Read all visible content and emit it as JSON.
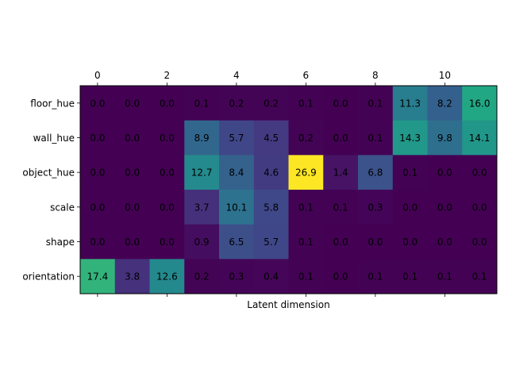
{
  "chart_data": {
    "type": "heatmap",
    "title": "",
    "xlabel": "Latent dimension",
    "ylabel": "",
    "x_ticks_top": [
      0,
      2,
      4,
      6,
      8,
      10
    ],
    "x_ticks_bottom_labels": false,
    "x_columns": [
      0,
      1,
      2,
      3,
      4,
      5,
      6,
      7,
      8,
      9,
      10,
      11
    ],
    "y_labels": [
      "floor_hue",
      "wall_hue",
      "object_hue",
      "scale",
      "shape",
      "orientation"
    ],
    "values": [
      [
        0.0,
        0.0,
        0.0,
        0.1,
        0.2,
        0.2,
        0.1,
        0.0,
        0.1,
        11.3,
        8.2,
        16.0
      ],
      [
        0.0,
        0.0,
        0.0,
        8.9,
        5.7,
        4.5,
        0.2,
        0.0,
        0.1,
        14.3,
        9.8,
        14.1
      ],
      [
        0.0,
        0.0,
        0.0,
        12.7,
        8.4,
        4.6,
        26.9,
        1.4,
        6.8,
        0.1,
        0.0,
        0.0
      ],
      [
        0.0,
        0.0,
        0.0,
        3.7,
        10.1,
        5.8,
        0.1,
        0.1,
        0.3,
        0.0,
        0.0,
        0.0
      ],
      [
        0.0,
        0.0,
        0.0,
        0.9,
        6.5,
        5.7,
        0.1,
        0.0,
        0.0,
        0.0,
        0.0,
        0.0
      ],
      [
        17.4,
        3.8,
        12.6,
        0.2,
        0.3,
        0.4,
        0.1,
        0.0,
        0.1,
        0.1,
        0.1,
        0.1
      ]
    ],
    "colormap": "viridis",
    "vmin": 0.0,
    "vmax": 26.9,
    "grid": false,
    "colorbar": false
  }
}
